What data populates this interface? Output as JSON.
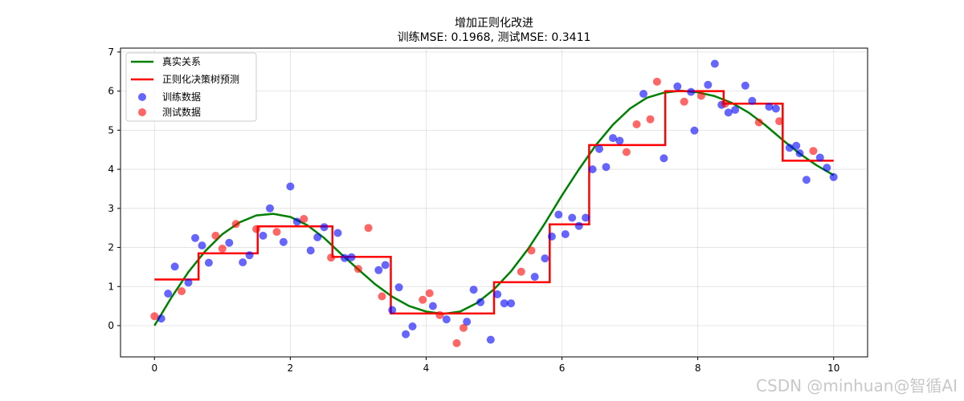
{
  "chart_data": {
    "type": "scatter",
    "title": "增加正则化改进",
    "subtitle": "训练MSE: 0.1968, 测试MSE: 0.3411",
    "xlabel": "",
    "ylabel": "",
    "xlim": [
      -0.5,
      10.5
    ],
    "ylim": [
      -0.8,
      7.1
    ],
    "xticks": [
      0,
      2,
      4,
      6,
      8,
      10
    ],
    "yticks": [
      0,
      1,
      2,
      3,
      4,
      5,
      6,
      7
    ],
    "grid": true,
    "legend_position": "top-left",
    "series": [
      {
        "name": "真实关系",
        "kind": "line",
        "color": "#008000",
        "x": [
          0,
          0.25,
          0.5,
          0.75,
          1.0,
          1.25,
          1.5,
          1.75,
          2.0,
          2.25,
          2.5,
          2.75,
          3.0,
          3.25,
          3.5,
          3.75,
          4.0,
          4.25,
          4.5,
          4.75,
          5.0,
          5.25,
          5.5,
          5.75,
          6.0,
          6.25,
          6.5,
          6.75,
          7.0,
          7.25,
          7.5,
          7.75,
          8.0,
          8.25,
          8.5,
          8.75,
          9.0,
          9.25,
          9.5,
          9.75,
          10.0
        ],
        "y": [
          0.0,
          0.72,
          1.37,
          1.91,
          2.34,
          2.64,
          2.82,
          2.86,
          2.78,
          2.57,
          2.24,
          1.83,
          1.44,
          1.06,
          0.74,
          0.5,
          0.36,
          0.3,
          0.36,
          0.58,
          0.93,
          1.39,
          1.96,
          2.62,
          3.33,
          4.0,
          4.62,
          5.14,
          5.55,
          5.83,
          5.96,
          6.01,
          5.97,
          5.87,
          5.7,
          5.45,
          5.12,
          4.75,
          4.4,
          4.1,
          3.85
        ]
      },
      {
        "name": "正则化决策树预测",
        "kind": "step",
        "color": "#ff0000",
        "segments": [
          {
            "x0": 0,
            "x1": 0.65,
            "y": 1.18
          },
          {
            "x0": 0.65,
            "x1": 1.52,
            "y": 1.85
          },
          {
            "x0": 1.52,
            "x1": 2.62,
            "y": 2.54
          },
          {
            "x0": 2.62,
            "x1": 3.48,
            "y": 1.76
          },
          {
            "x0": 3.48,
            "x1": 5.0,
            "y": 0.31
          },
          {
            "x0": 5.0,
            "x1": 5.82,
            "y": 1.11
          },
          {
            "x0": 5.82,
            "x1": 6.4,
            "y": 2.59
          },
          {
            "x0": 6.4,
            "x1": 7.52,
            "y": 4.62
          },
          {
            "x0": 7.52,
            "x1": 8.38,
            "y": 6.0
          },
          {
            "x0": 8.38,
            "x1": 9.25,
            "y": 5.68
          },
          {
            "x0": 9.25,
            "x1": 10.0,
            "y": 4.22
          }
        ]
      },
      {
        "name": "训练数据",
        "kind": "points",
        "color": "#0000ff",
        "x": [
          0.1,
          0.2,
          0.3,
          0.5,
          0.6,
          0.7,
          0.8,
          1.1,
          1.3,
          1.4,
          1.6,
          1.7,
          1.9,
          2.0,
          2.1,
          2.3,
          2.4,
          2.5,
          2.7,
          2.8,
          2.9,
          3.3,
          3.4,
          3.5,
          3.6,
          3.7,
          3.8,
          4.1,
          4.3,
          4.6,
          4.7,
          4.8,
          4.95,
          5.05,
          5.15,
          5.25,
          5.6,
          5.75,
          5.85,
          5.95,
          6.05,
          6.15,
          6.25,
          6.35,
          6.45,
          6.55,
          6.65,
          6.75,
          6.85,
          7.2,
          7.5,
          7.7,
          7.9,
          7.95,
          8.15,
          8.25,
          8.35,
          8.45,
          8.55,
          8.7,
          8.8,
          9.05,
          9.15,
          9.35,
          9.45,
          9.5,
          9.6,
          9.8,
          9.9,
          10.0
        ],
        "y": [
          0.18,
          0.82,
          1.51,
          1.1,
          2.24,
          2.05,
          1.61,
          2.12,
          1.62,
          1.8,
          2.3,
          3.0,
          2.14,
          3.56,
          2.66,
          1.92,
          2.26,
          2.52,
          2.37,
          1.73,
          1.75,
          1.42,
          1.55,
          0.4,
          0.98,
          -0.22,
          -0.02,
          0.5,
          0.16,
          0.1,
          0.92,
          0.6,
          -0.36,
          0.8,
          0.57,
          0.57,
          1.25,
          1.72,
          2.28,
          2.84,
          2.34,
          2.76,
          2.55,
          2.76,
          4.0,
          4.52,
          4.06,
          4.8,
          4.73,
          5.93,
          4.28,
          6.12,
          5.98,
          4.99,
          6.16,
          6.7,
          5.65,
          5.45,
          5.52,
          6.14,
          5.75,
          5.6,
          5.55,
          4.55,
          4.6,
          4.41,
          3.73,
          4.3,
          4.04,
          3.8
        ]
      },
      {
        "name": "测试数据",
        "kind": "points",
        "color": "#ff0000",
        "x": [
          0.0,
          0.4,
          0.9,
          1.0,
          1.2,
          1.5,
          1.8,
          2.2,
          2.6,
          3.0,
          3.15,
          3.35,
          3.95,
          4.05,
          4.2,
          4.45,
          4.55,
          5.4,
          5.55,
          6.95,
          7.1,
          7.3,
          7.4,
          7.8,
          8.05,
          8.4,
          8.9,
          9.2,
          9.7
        ],
        "y": [
          0.24,
          0.88,
          2.3,
          1.97,
          2.6,
          2.47,
          2.4,
          2.73,
          1.74,
          1.45,
          2.5,
          0.75,
          0.66,
          0.83,
          0.27,
          -0.45,
          -0.06,
          1.38,
          1.92,
          4.44,
          5.15,
          5.28,
          6.24,
          5.73,
          5.88,
          5.68,
          5.2,
          5.23,
          4.47
        ]
      }
    ]
  },
  "watermark": "CSDN @minhuan@智循AI"
}
